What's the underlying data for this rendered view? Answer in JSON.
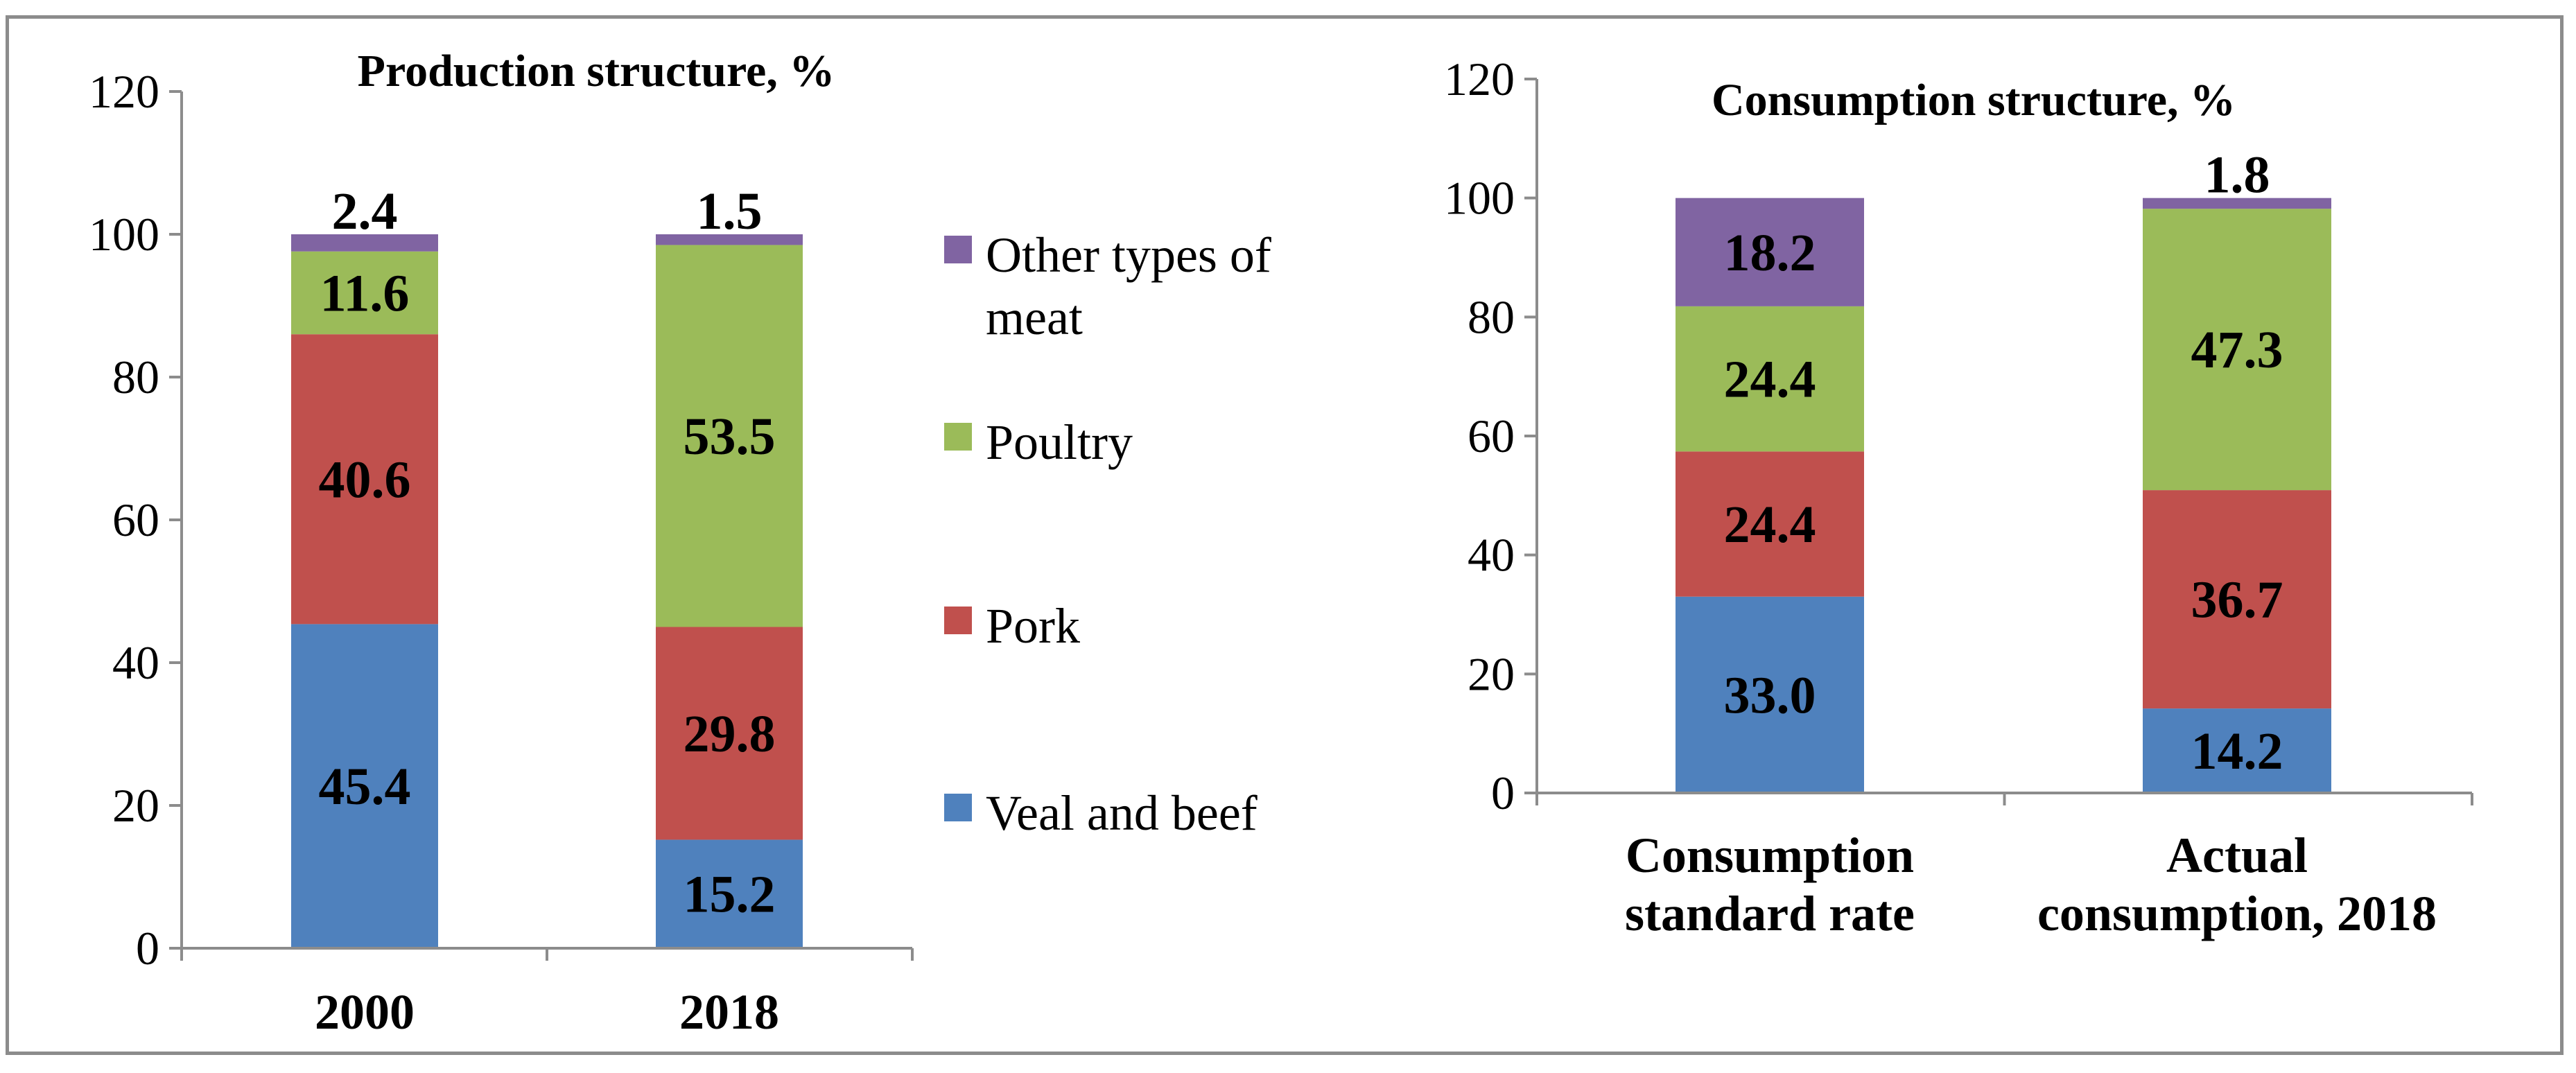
{
  "colors": {
    "veal_and_beef": "#4f81bd",
    "pork": "#c0504d",
    "poultry": "#9bbb59",
    "other": "#8064a2"
  },
  "legend": {
    "items": [
      {
        "label_lines": [
          "Other types of",
          "meat"
        ],
        "color_key": "other"
      },
      {
        "label_lines": [
          "Poultry"
        ],
        "color_key": "poultry"
      },
      {
        "label_lines": [
          "Pork"
        ],
        "color_key": "pork"
      },
      {
        "label_lines": [
          "Veal and beef"
        ],
        "color_key": "veal_and_beef"
      }
    ]
  },
  "chart_data": [
    {
      "type": "bar",
      "stacked": true,
      "title": "Production structure, %",
      "categories": [
        [
          "2000"
        ],
        [
          "2018"
        ]
      ],
      "ylim": [
        0,
        120
      ],
      "yticks": [
        0,
        20,
        40,
        60,
        80,
        100,
        120
      ],
      "grid": false,
      "series": [
        {
          "name": "Veal and beef",
          "color_key": "veal_and_beef",
          "values": [
            45.4,
            15.2
          ],
          "labels": [
            "45.4",
            "15.2"
          ]
        },
        {
          "name": "Pork",
          "color_key": "pork",
          "values": [
            40.6,
            29.8
          ],
          "labels": [
            "40.6",
            "29.8"
          ]
        },
        {
          "name": "Poultry",
          "color_key": "poultry",
          "values": [
            11.6,
            53.5
          ],
          "labels": [
            "11.6",
            "53.5"
          ]
        },
        {
          "name": "Other types of meat",
          "color_key": "other",
          "values": [
            2.4,
            1.5
          ],
          "labels": [
            "2.4",
            "1.5"
          ]
        }
      ]
    },
    {
      "type": "bar",
      "stacked": true,
      "title": "Consumption structure, %",
      "categories": [
        [
          "Consumption",
          "standard rate"
        ],
        [
          "Actual",
          "consumption, 2018"
        ]
      ],
      "ylim": [
        0,
        120
      ],
      "yticks": [
        0,
        20,
        40,
        60,
        80,
        100,
        120
      ],
      "grid": false,
      "series": [
        {
          "name": "Veal and beef",
          "color_key": "veal_and_beef",
          "values": [
            33.0,
            14.2
          ],
          "labels": [
            "33.0",
            "14.2"
          ]
        },
        {
          "name": "Pork",
          "color_key": "pork",
          "values": [
            24.4,
            36.7
          ],
          "labels": [
            "24.4",
            "36.7"
          ]
        },
        {
          "name": "Poultry",
          "color_key": "poultry",
          "values": [
            24.4,
            47.3
          ],
          "labels": [
            "24.4",
            "47.3"
          ]
        },
        {
          "name": "Other types of meat",
          "color_key": "other",
          "values": [
            18.2,
            1.8
          ],
          "labels": [
            "18.2",
            "1.8"
          ]
        }
      ]
    }
  ]
}
